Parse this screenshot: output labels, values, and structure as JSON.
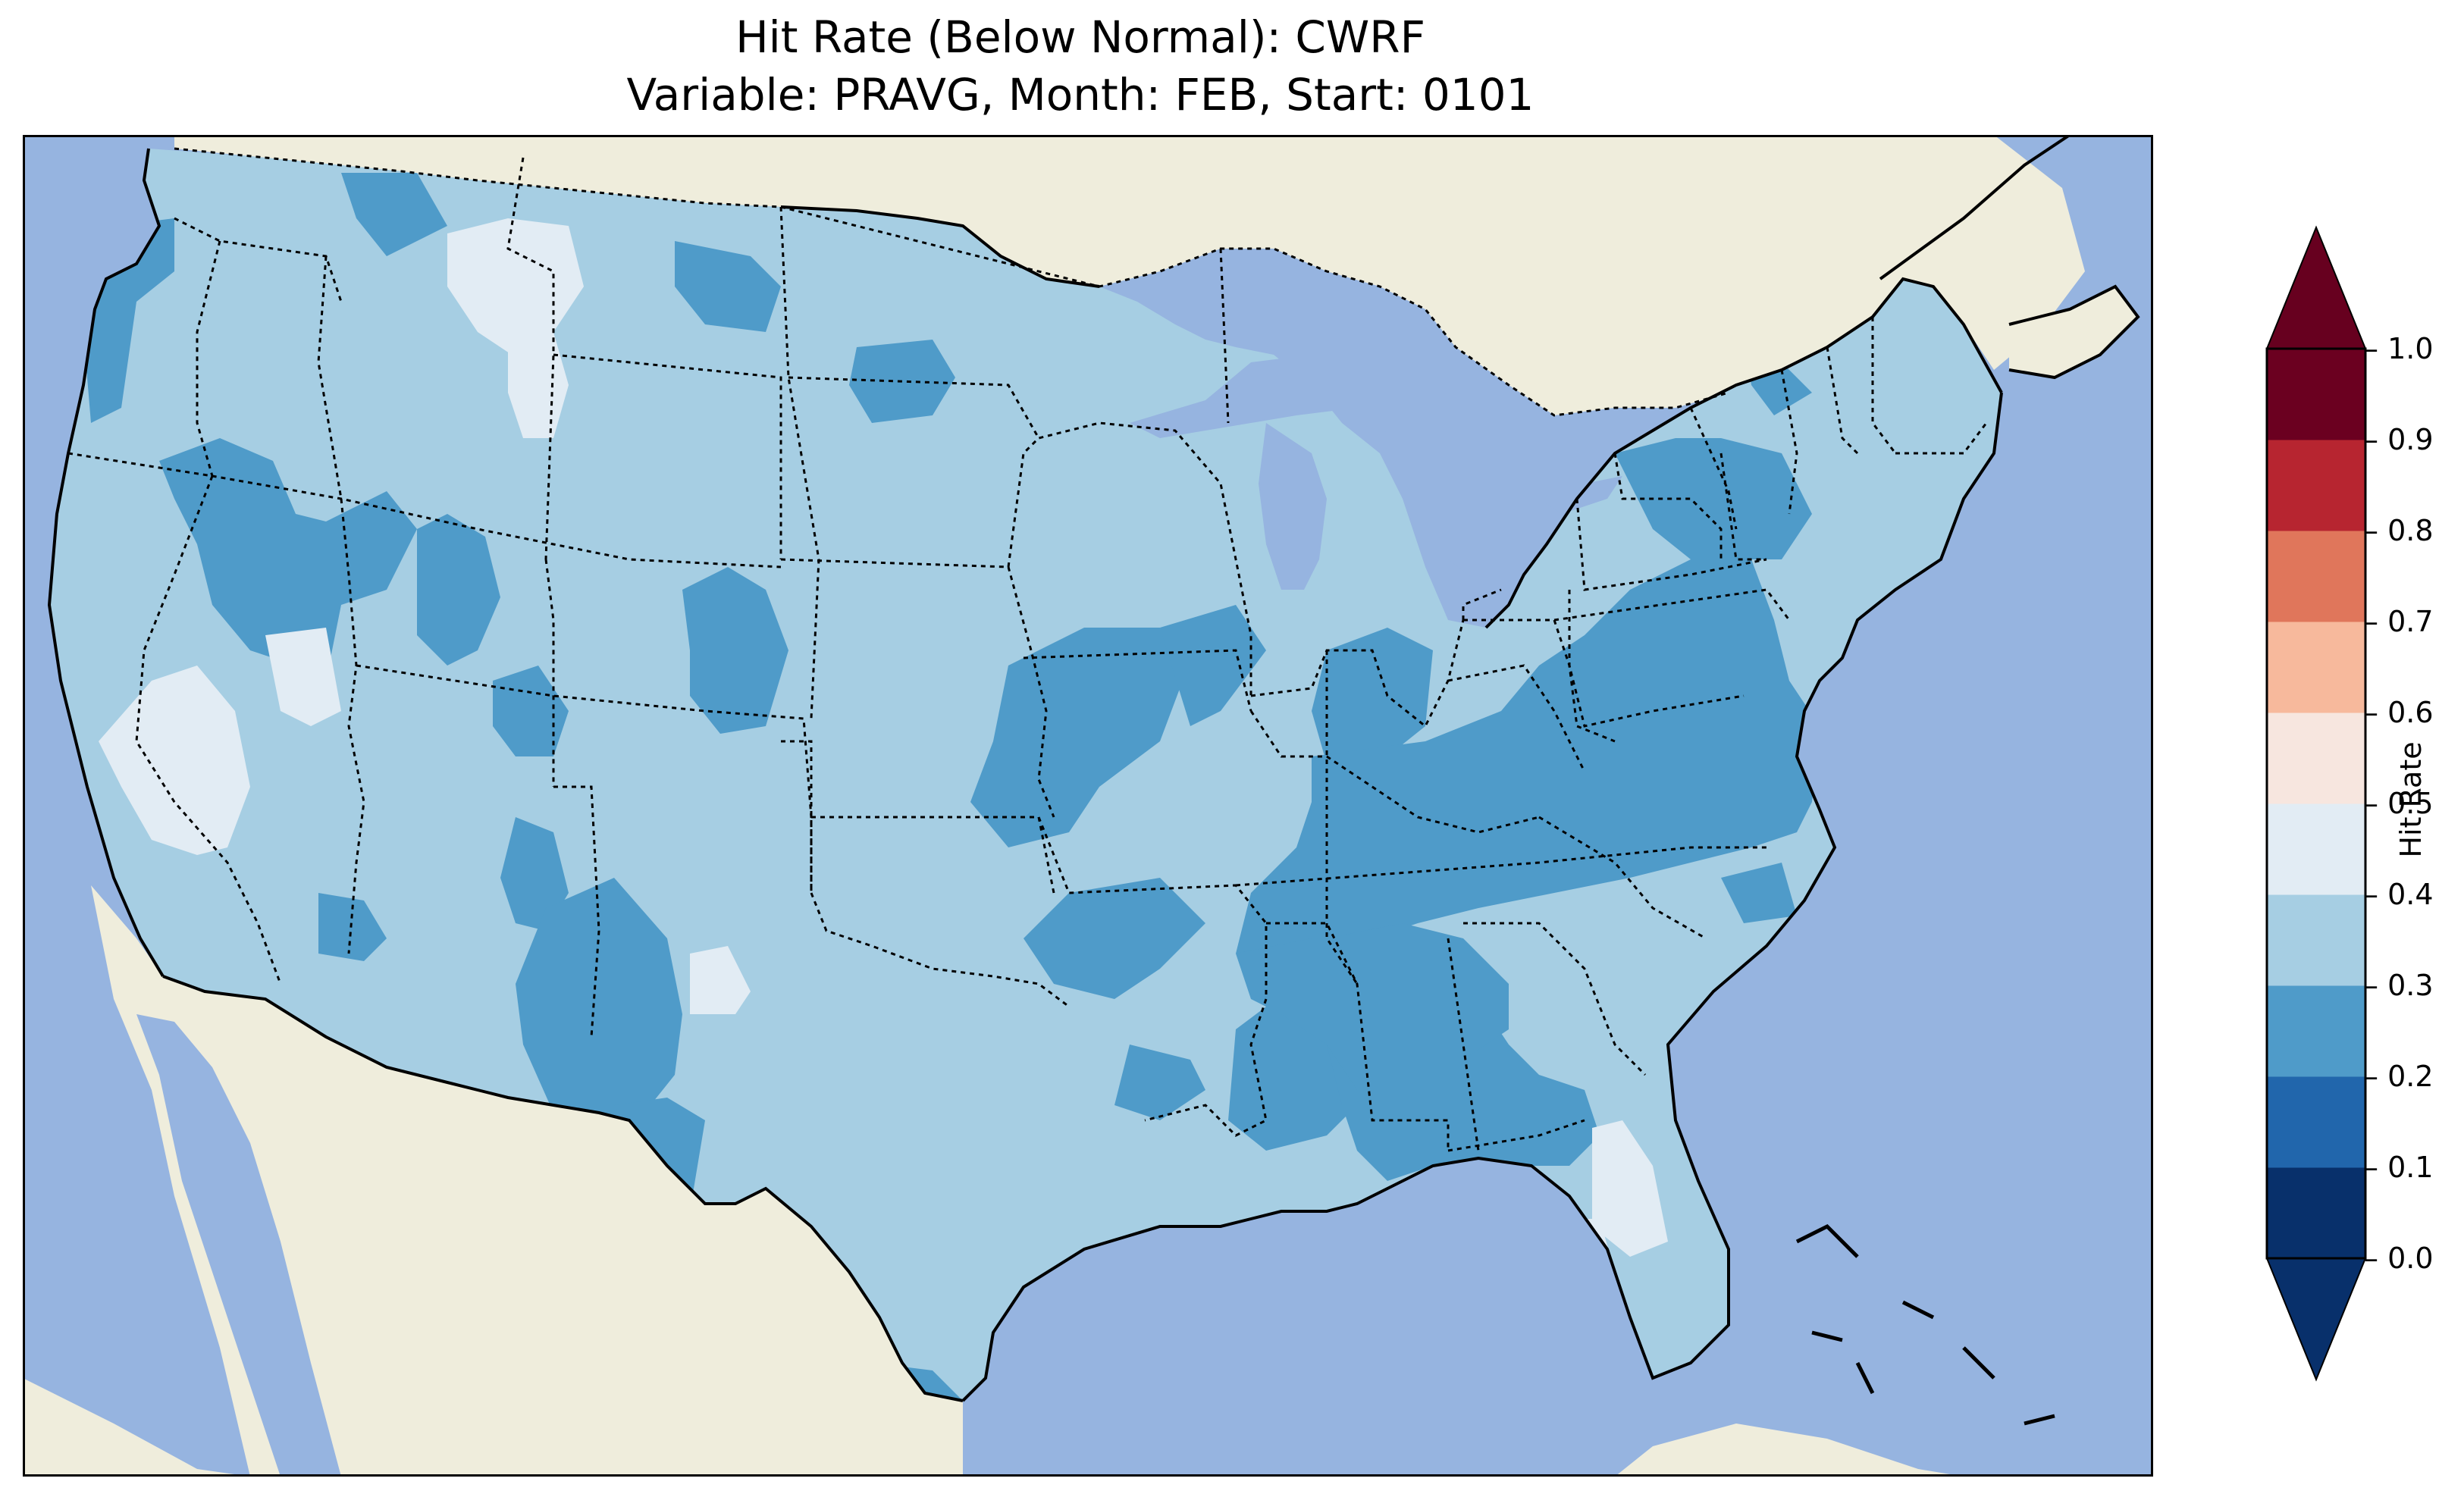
{
  "title": {
    "line1": "Hit Rate (Below Normal): CWRF",
    "line2": "Variable: PRAVG, Month: FEB, Start: 0101"
  },
  "colorbar": {
    "label": "Hit Rate",
    "ticks": [
      "0.0",
      "0.1",
      "0.2",
      "0.3",
      "0.4",
      "0.5",
      "0.6",
      "0.7",
      "0.8",
      "0.9",
      "1.0"
    ],
    "colors": [
      "#053061",
      "#2166ac",
      "#4393c3",
      "#92c5de",
      "#d1e5f0",
      "#f7f7f7",
      "#fddbc7",
      "#f4a582",
      "#d6604d",
      "#b2182b",
      "#67001f"
    ],
    "bins": [
      "#08306b",
      "#2166ac",
      "#4f9bc9",
      "#a6cee3",
      "#e2ecf4",
      "#f7e6df",
      "#f7b99c",
      "#e0765b",
      "#b72530",
      "#6b0020"
    ],
    "extend": "both"
  },
  "map": {
    "region": "Continental United States",
    "colors": {
      "ocean": "#96b4e0",
      "land": "#efeddc",
      "lakes": "#96b4e0"
    },
    "dominant_bin": "0.3-0.4",
    "regions": [
      {
        "name": "Pacific Northwest coast",
        "value_range": "0.2-0.3"
      },
      {
        "name": "Northern Great Basin",
        "value_range": "0.2-0.3"
      },
      {
        "name": "Montana highlands",
        "value_range": "0.4-0.5"
      },
      {
        "name": "Southern California interior",
        "value_range": "0.4-0.5"
      },
      {
        "name": "Colorado Rockies",
        "value_range": "0.2-0.3"
      },
      {
        "name": "New Mexico",
        "value_range": "0.2-0.3"
      },
      {
        "name": "Missouri and Arkansas",
        "value_range": "0.2-0.3"
      },
      {
        "name": "Ohio Valley to Mid-Atlantic",
        "value_range": "0.2-0.3"
      },
      {
        "name": "Southeast and Gulf Coast",
        "value_range": "0.2-0.3"
      },
      {
        "name": "Central Florida",
        "value_range": "0.4-0.5"
      },
      {
        "name": "Southeast Texas",
        "value_range": "0.2-0.3"
      }
    ]
  }
}
